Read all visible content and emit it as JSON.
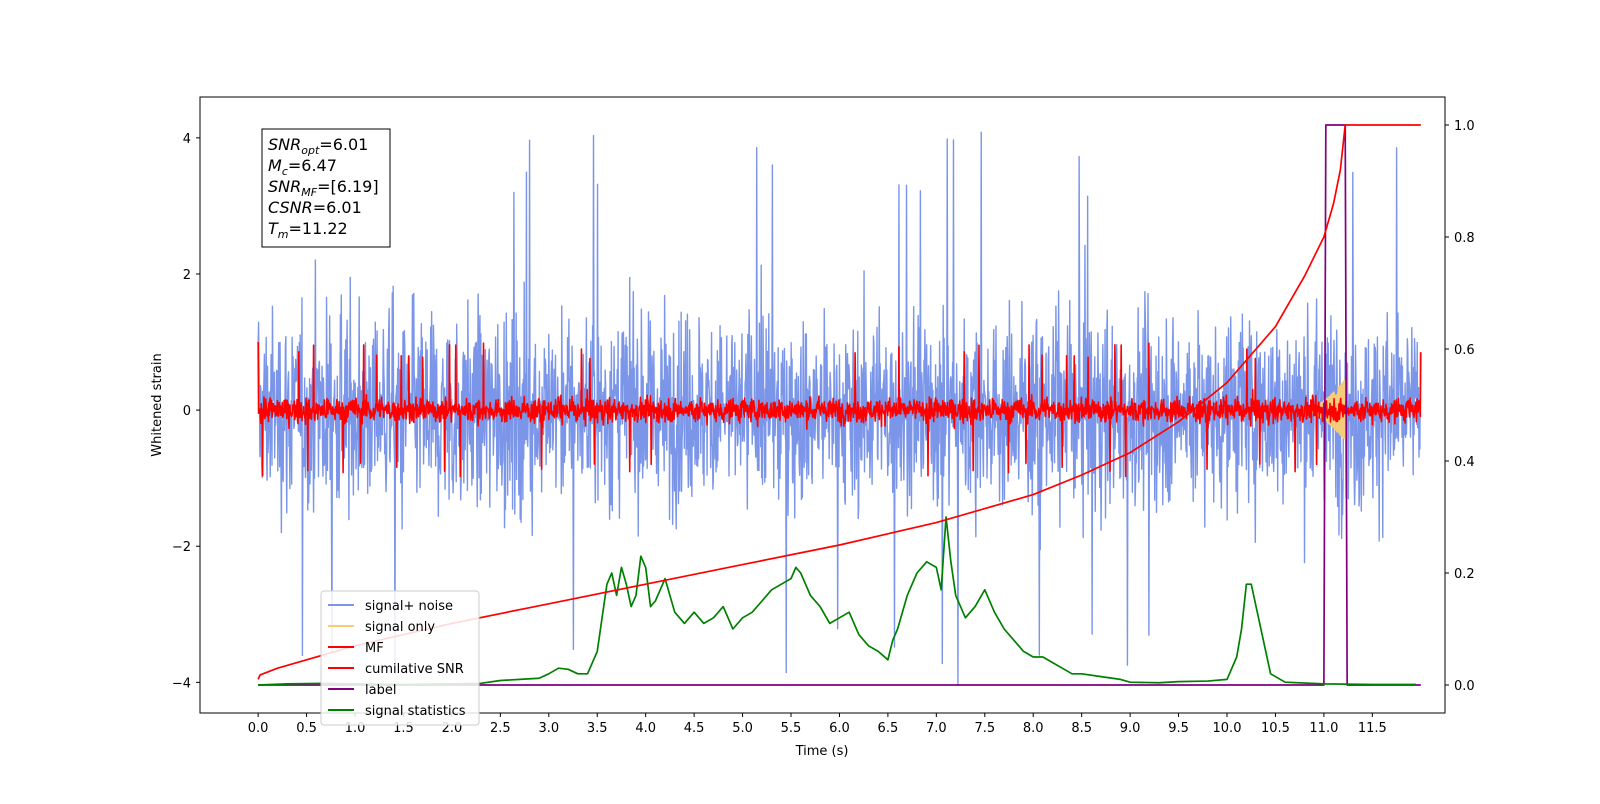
{
  "chart_data": {
    "type": "line",
    "xlabel": "Time (s)",
    "ylabel": "Whitened strain",
    "xlim": [
      -0.6,
      12.25
    ],
    "ylim": [
      -4.45,
      4.6
    ],
    "ylim_right": [
      -0.05,
      1.05
    ],
    "x_ticks": [
      0.0,
      0.5,
      1.0,
      1.5,
      2.0,
      2.5,
      3.0,
      3.5,
      4.0,
      4.5,
      5.0,
      5.5,
      6.0,
      6.5,
      7.0,
      7.5,
      8.0,
      8.5,
      9.0,
      9.5,
      10.0,
      10.5,
      11.0,
      11.5
    ],
    "x_tick_labels": [
      "0.0",
      "0.5",
      "1.0",
      "1.5",
      "2.0",
      "2.5",
      "3.0",
      "3.5",
      "4.0",
      "4.5",
      "5.0",
      "5.5",
      "6.0",
      "6.5",
      "7.0",
      "7.5",
      "8.0",
      "8.5",
      "9.0",
      "9.5",
      "10.0",
      "10.5",
      "11.0",
      "11.5"
    ],
    "y_ticks": [
      -4,
      -2,
      0,
      2,
      4
    ],
    "y_tick_labels": [
      "−4",
      "−2",
      "0",
      "2",
      "4"
    ],
    "y_right_ticks": [
      0.0,
      0.2,
      0.4,
      0.6,
      0.8,
      1.0
    ],
    "y_right_tick_labels": [
      "0.0",
      "0.2",
      "0.4",
      "0.6",
      "0.8",
      "1.0"
    ],
    "grid": false,
    "legend_position": "lower-left",
    "annotation": {
      "lines": [
        {
          "base": "SNR",
          "sub": "opt",
          "value": "=6.01"
        },
        {
          "base": "M",
          "sub": "c",
          "value": "=6.47"
        },
        {
          "base": "SNR",
          "sub": "MF",
          "value": "=[6.19]"
        },
        {
          "base": "CSNR",
          "sub": "",
          "value": "=6.01"
        },
        {
          "base": "T",
          "sub": "m",
          "value": "=11.22"
        }
      ]
    },
    "series": [
      {
        "name": "signal+ noise",
        "axis": "left",
        "color": "#7b96e8",
        "style": "noise",
        "x_range": [
          0.0,
          12.0
        ],
        "amplitude_typical": 2.4,
        "amplitude_peak": 4.15
      },
      {
        "name": "signal only",
        "axis": "left",
        "color": "#f5cd7a",
        "style": "chirp",
        "x_range": [
          10.8,
          11.22
        ],
        "amplitude_max": 0.45
      },
      {
        "name": "MF",
        "axis": "left",
        "color": "#ff0000",
        "style": "noise",
        "x_range": [
          0.0,
          12.0
        ],
        "amplitude_typical": 0.3,
        "amplitude_peak": 1.0
      },
      {
        "name": "cumilative SNR",
        "axis": "right",
        "color": "#ff0000",
        "style": "line",
        "x": [
          0.0,
          0.02,
          0.2,
          0.5,
          1.0,
          2.0,
          3.0,
          4.0,
          5.0,
          6.0,
          6.5,
          7.0,
          7.5,
          8.0,
          8.5,
          9.0,
          9.5,
          10.0,
          10.5,
          10.8,
          11.0,
          11.1,
          11.17,
          11.22,
          11.3,
          12.0
        ],
        "y": [
          0.01,
          0.018,
          0.03,
          0.045,
          0.07,
          0.11,
          0.145,
          0.18,
          0.215,
          0.25,
          0.27,
          0.29,
          0.315,
          0.34,
          0.375,
          0.415,
          0.47,
          0.54,
          0.64,
          0.73,
          0.8,
          0.86,
          0.92,
          1.0,
          1.0,
          1.0
        ]
      },
      {
        "name": "label",
        "axis": "right",
        "color": "#800080",
        "style": "line",
        "x": [
          0.0,
          11.0,
          11.02,
          11.22,
          11.24,
          12.0
        ],
        "y": [
          0.0,
          0.0,
          1.0,
          1.0,
          0.0,
          0.0
        ]
      },
      {
        "name": "signal statistics",
        "axis": "right",
        "color": "#008000",
        "style": "line",
        "x": [
          0.0,
          0.3,
          0.7,
          1.0,
          1.5,
          2.0,
          2.3,
          2.5,
          2.7,
          2.9,
          3.0,
          3.1,
          3.2,
          3.3,
          3.4,
          3.5,
          3.55,
          3.6,
          3.65,
          3.7,
          3.75,
          3.8,
          3.85,
          3.9,
          3.95,
          4.0,
          4.05,
          4.1,
          4.15,
          4.2,
          4.3,
          4.4,
          4.5,
          4.55,
          4.6,
          4.7,
          4.8,
          4.9,
          5.0,
          5.1,
          5.2,
          5.3,
          5.4,
          5.5,
          5.55,
          5.6,
          5.65,
          5.7,
          5.8,
          5.9,
          6.0,
          6.1,
          6.2,
          6.3,
          6.4,
          6.5,
          6.55,
          6.6,
          6.7,
          6.75,
          6.8,
          6.9,
          7.0,
          7.05,
          7.1,
          7.15,
          7.2,
          7.3,
          7.4,
          7.5,
          7.6,
          7.7,
          7.8,
          7.9,
          8.0,
          8.1,
          8.2,
          8.3,
          8.4,
          8.5,
          8.7,
          8.9,
          9.0,
          9.3,
          9.5,
          9.8,
          10.0,
          10.1,
          10.15,
          10.2,
          10.25,
          10.35,
          10.45,
          10.6,
          11.0,
          11.5,
          11.95
        ],
        "y": [
          0.0,
          0.002,
          0.003,
          0.002,
          0.001,
          0.002,
          0.003,
          0.008,
          0.01,
          0.012,
          0.02,
          0.03,
          0.028,
          0.02,
          0.02,
          0.06,
          0.12,
          0.18,
          0.2,
          0.16,
          0.21,
          0.18,
          0.14,
          0.16,
          0.23,
          0.21,
          0.14,
          0.15,
          0.17,
          0.19,
          0.13,
          0.11,
          0.13,
          0.12,
          0.11,
          0.12,
          0.14,
          0.1,
          0.12,
          0.13,
          0.15,
          0.17,
          0.18,
          0.19,
          0.21,
          0.2,
          0.18,
          0.16,
          0.14,
          0.11,
          0.12,
          0.13,
          0.09,
          0.07,
          0.06,
          0.045,
          0.08,
          0.1,
          0.16,
          0.18,
          0.2,
          0.22,
          0.21,
          0.17,
          0.3,
          0.22,
          0.16,
          0.12,
          0.14,
          0.17,
          0.13,
          0.1,
          0.08,
          0.06,
          0.05,
          0.05,
          0.04,
          0.03,
          0.02,
          0.02,
          0.015,
          0.01,
          0.005,
          0.004,
          0.006,
          0.007,
          0.01,
          0.05,
          0.1,
          0.18,
          0.18,
          0.1,
          0.02,
          0.005,
          0.002,
          0.001,
          0.001
        ]
      }
    ]
  }
}
